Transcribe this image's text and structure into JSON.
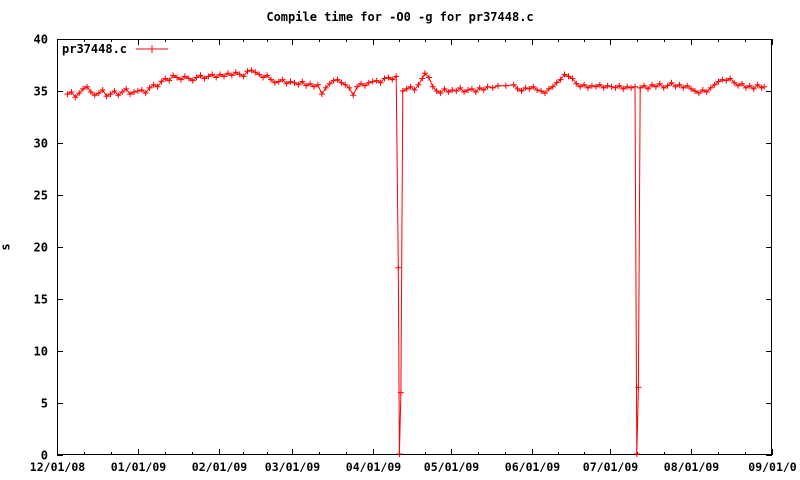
{
  "window": {
    "background": "#ffffff"
  },
  "chart_data": {
    "type": "line",
    "title": "Compile time for -O0 -g for pr37448.c",
    "xlabel": "",
    "ylabel": "s",
    "legend": {
      "position": "top-left-inside",
      "entries": [
        "pr37448.c"
      ]
    },
    "colors": {
      "series": "#ff0000",
      "axis": "#000000",
      "text": "#000000",
      "background": "#ffffff"
    },
    "x_axis": {
      "unit": "date",
      "range_days": [
        0,
        274
      ],
      "major_tick_days": [
        0,
        31,
        62,
        90,
        121,
        151,
        182,
        212,
        243,
        274
      ],
      "tick_labels": [
        "12/01/08",
        "01/01/09",
        "02/01/09",
        "03/01/09",
        "04/01/09",
        "05/01/09",
        "06/01/09",
        "07/01/09",
        "08/01/09",
        "09/01/0"
      ],
      "minor_ticks_per_interval": 2
    },
    "y_axis": {
      "range": [
        0,
        40
      ],
      "tick_step": 5,
      "tick_labels": [
        "0",
        "5",
        "10",
        "15",
        "20",
        "25",
        "30",
        "35",
        "40"
      ]
    },
    "series": [
      {
        "name": "pr37448.c",
        "color": "#ff0000",
        "marker": "plus",
        "points": [
          [
            4,
            34.7
          ],
          [
            5.5,
            34.9
          ],
          [
            7,
            34.4
          ],
          [
            8.5,
            34.8
          ],
          [
            10,
            35.2
          ],
          [
            11.5,
            35.4
          ],
          [
            13,
            34.9
          ],
          [
            14.5,
            34.6
          ],
          [
            16,
            34.8
          ],
          [
            17.5,
            35.1
          ],
          [
            19,
            34.5
          ],
          [
            20.5,
            34.7
          ],
          [
            22,
            35.0
          ],
          [
            23.5,
            34.6
          ],
          [
            25,
            34.9
          ],
          [
            26.5,
            35.2
          ],
          [
            28,
            34.7
          ],
          [
            29.5,
            34.9
          ],
          [
            31,
            35.0
          ],
          [
            32.5,
            35.1
          ],
          [
            34,
            34.8
          ],
          [
            35.5,
            35.3
          ],
          [
            37,
            35.6
          ],
          [
            38.5,
            35.4
          ],
          [
            40,
            35.9
          ],
          [
            41.5,
            36.2
          ],
          [
            43,
            36.0
          ],
          [
            44.5,
            36.5
          ],
          [
            46,
            36.3
          ],
          [
            47.5,
            36.1
          ],
          [
            49,
            36.4
          ],
          [
            50.5,
            36.2
          ],
          [
            52,
            36.0
          ],
          [
            53.5,
            36.3
          ],
          [
            55,
            36.5
          ],
          [
            56.5,
            36.2
          ],
          [
            58,
            36.4
          ],
          [
            59.5,
            36.6
          ],
          [
            61,
            36.3
          ],
          [
            62.5,
            36.6
          ],
          [
            64,
            36.4
          ],
          [
            65.5,
            36.7
          ],
          [
            67,
            36.5
          ],
          [
            68.5,
            36.8
          ],
          [
            70,
            36.6
          ],
          [
            71.5,
            36.4
          ],
          [
            73,
            36.9
          ],
          [
            74.5,
            37.0
          ],
          [
            76,
            36.8
          ],
          [
            77.5,
            36.6
          ],
          [
            79,
            36.3
          ],
          [
            80.5,
            36.5
          ],
          [
            82,
            36.1
          ],
          [
            83.5,
            35.8
          ],
          [
            85,
            35.9
          ],
          [
            86.5,
            36.1
          ],
          [
            88,
            35.7
          ],
          [
            89.5,
            35.9
          ],
          [
            91,
            35.8
          ],
          [
            92.5,
            35.6
          ],
          [
            94,
            35.9
          ],
          [
            95.5,
            35.5
          ],
          [
            97,
            35.7
          ],
          [
            98.5,
            35.4
          ],
          [
            100,
            35.6
          ],
          [
            101.5,
            34.7
          ],
          [
            103,
            35.3
          ],
          [
            104.5,
            35.7
          ],
          [
            106,
            36.0
          ],
          [
            107.5,
            36.1
          ],
          [
            109,
            35.8
          ],
          [
            110.5,
            35.6
          ],
          [
            112,
            35.3
          ],
          [
            113.5,
            34.6
          ],
          [
            115,
            35.4
          ],
          [
            116.5,
            35.7
          ],
          [
            118,
            35.5
          ],
          [
            119.5,
            35.8
          ],
          [
            121,
            35.9
          ],
          [
            122.5,
            36.0
          ],
          [
            124,
            35.8
          ],
          [
            125.5,
            36.2
          ],
          [
            127,
            36.3
          ],
          [
            128.5,
            36.1
          ],
          [
            130,
            36.4
          ],
          [
            130.8,
            18.0
          ],
          [
            131.2,
            0.1
          ],
          [
            131.8,
            6.0
          ],
          [
            132.5,
            35.0
          ],
          [
            134,
            35.2
          ],
          [
            135.5,
            35.4
          ],
          [
            137,
            35.1
          ],
          [
            138.5,
            35.6
          ],
          [
            140,
            36.2
          ],
          [
            141,
            36.7
          ],
          [
            142.5,
            36.3
          ],
          [
            144,
            35.4
          ],
          [
            145.5,
            35.0
          ],
          [
            147,
            34.8
          ],
          [
            148.5,
            35.2
          ],
          [
            150,
            34.9
          ],
          [
            151.5,
            35.1
          ],
          [
            153,
            35.0
          ],
          [
            154.5,
            35.3
          ],
          [
            156,
            34.9
          ],
          [
            157.5,
            35.1
          ],
          [
            159,
            35.2
          ],
          [
            160.5,
            34.9
          ],
          [
            162,
            35.3
          ],
          [
            163.5,
            35.1
          ],
          [
            165,
            35.4
          ],
          [
            167,
            35.3
          ],
          [
            169,
            35.5
          ],
          [
            172,
            35.5
          ],
          [
            175,
            35.6
          ],
          [
            176.5,
            35.2
          ],
          [
            178,
            35.0
          ],
          [
            179.5,
            35.3
          ],
          [
            181,
            35.2
          ],
          [
            182.5,
            35.4
          ],
          [
            184,
            35.1
          ],
          [
            185.5,
            35.0
          ],
          [
            187,
            34.8
          ],
          [
            188.5,
            35.2
          ],
          [
            190,
            35.4
          ],
          [
            191.5,
            35.8
          ],
          [
            193,
            36.1
          ],
          [
            194.5,
            36.6
          ],
          [
            196,
            36.4
          ],
          [
            197.5,
            36.2
          ],
          [
            199,
            35.7
          ],
          [
            200.5,
            35.4
          ],
          [
            202,
            35.6
          ],
          [
            203.5,
            35.3
          ],
          [
            205,
            35.5
          ],
          [
            206.5,
            35.4
          ],
          [
            208,
            35.6
          ],
          [
            209.5,
            35.3
          ],
          [
            211,
            35.5
          ],
          [
            212.5,
            35.4
          ],
          [
            214,
            35.3
          ],
          [
            215.5,
            35.5
          ],
          [
            217,
            35.2
          ],
          [
            218.5,
            35.4
          ],
          [
            220,
            35.3
          ],
          [
            221.5,
            35.4
          ],
          [
            222.2,
            0.1
          ],
          [
            222.8,
            6.5
          ],
          [
            223.5,
            35.3
          ],
          [
            225,
            35.5
          ],
          [
            226.5,
            35.2
          ],
          [
            228,
            35.6
          ],
          [
            229.5,
            35.4
          ],
          [
            231,
            35.7
          ],
          [
            232.5,
            35.3
          ],
          [
            234,
            35.5
          ],
          [
            235.5,
            35.8
          ],
          [
            237,
            35.4
          ],
          [
            238.5,
            35.6
          ],
          [
            240,
            35.3
          ],
          [
            241.5,
            35.5
          ],
          [
            243,
            35.2
          ],
          [
            244.5,
            35.0
          ],
          [
            246,
            34.8
          ],
          [
            247.5,
            35.1
          ],
          [
            249,
            34.9
          ],
          [
            250.5,
            35.3
          ],
          [
            252,
            35.6
          ],
          [
            253.5,
            35.9
          ],
          [
            255,
            36.1
          ],
          [
            256.5,
            36.0
          ],
          [
            258,
            36.2
          ],
          [
            259.5,
            35.8
          ],
          [
            261,
            35.5
          ],
          [
            262.5,
            35.7
          ],
          [
            264,
            35.3
          ],
          [
            265.5,
            35.5
          ],
          [
            267,
            35.2
          ],
          [
            268.5,
            35.6
          ],
          [
            270,
            35.3
          ],
          [
            271,
            35.4
          ]
        ]
      }
    ]
  }
}
